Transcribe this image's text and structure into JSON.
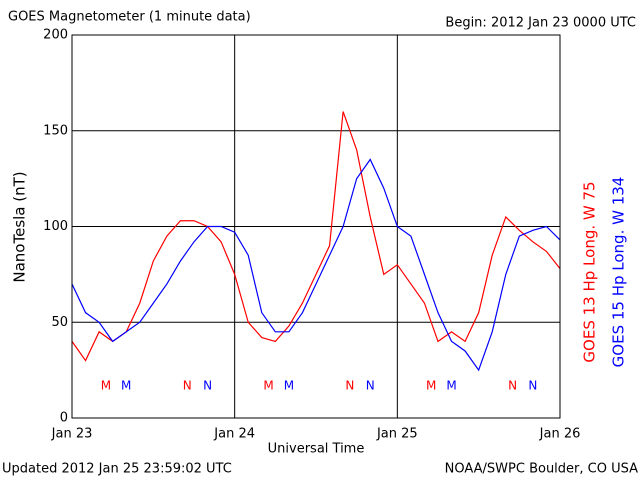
{
  "chart_data": {
    "type": "line",
    "title": "GOES Magnetometer (1 minute data)",
    "subtitle": "Begin:  2012 Jan 23 0000 UTC",
    "y_label": "NanoTesla (nT)",
    "x_label": "Universal Time",
    "footer_left": "Updated 2012 Jan 25 23:59:02 UTC",
    "footer_right": "NOAA/SWPC Boulder, CO USA",
    "x": [
      0,
      2,
      4,
      6,
      8,
      10,
      12,
      14,
      16,
      18,
      20,
      22,
      24,
      26,
      28,
      30,
      32,
      34,
      36,
      38,
      40,
      42,
      44,
      46,
      48,
      50,
      52,
      54,
      56,
      58,
      60,
      62,
      64,
      66,
      68,
      70,
      72
    ],
    "series": [
      {
        "name": "GOES 13 Hp  Long. W 75",
        "color": "#ff0000",
        "values": [
          40,
          30,
          45,
          40,
          45,
          60,
          82,
          95,
          103,
          103,
          100,
          92,
          75,
          50,
          42,
          40,
          48,
          60,
          75,
          90,
          160,
          140,
          105,
          75,
          80,
          70,
          60,
          40,
          45,
          40,
          55,
          85,
          105,
          98,
          92,
          87,
          78
        ]
      },
      {
        "name": "GOES 15 Hp  Long. W 134",
        "color": "#0000ff",
        "values": [
          70,
          55,
          50,
          40,
          45,
          50,
          60,
          70,
          82,
          92,
          100,
          100,
          97,
          85,
          55,
          45,
          45,
          55,
          70,
          85,
          100,
          125,
          135,
          120,
          100,
          95,
          75,
          55,
          40,
          35,
          25,
          45,
          75,
          95,
          98,
          100,
          93
        ]
      }
    ],
    "markers": [
      {
        "label": "M",
        "x": 5,
        "series": 0
      },
      {
        "label": "M",
        "x": 8,
        "series": 1
      },
      {
        "label": "N",
        "x": 17,
        "series": 0
      },
      {
        "label": "N",
        "x": 20,
        "series": 1
      },
      {
        "label": "M",
        "x": 29,
        "series": 0
      },
      {
        "label": "M",
        "x": 32,
        "series": 1
      },
      {
        "label": "N",
        "x": 41,
        "series": 0
      },
      {
        "label": "N",
        "x": 44,
        "series": 1
      },
      {
        "label": "M",
        "x": 53,
        "series": 0
      },
      {
        "label": "M",
        "x": 56,
        "series": 1
      },
      {
        "label": "N",
        "x": 65,
        "series": 0
      },
      {
        "label": "N",
        "x": 68,
        "series": 1
      }
    ],
    "xlim": [
      0,
      72
    ],
    "xticks": [
      {
        "value": 0,
        "label": "Jan 23"
      },
      {
        "value": 24,
        "label": "Jan 24"
      },
      {
        "value": 48,
        "label": "Jan 25"
      },
      {
        "value": 72,
        "label": "Jan 26"
      }
    ],
    "ylim": [
      0,
      200
    ],
    "yticks": [
      0,
      50,
      100,
      150,
      200
    ],
    "grid": true
  }
}
